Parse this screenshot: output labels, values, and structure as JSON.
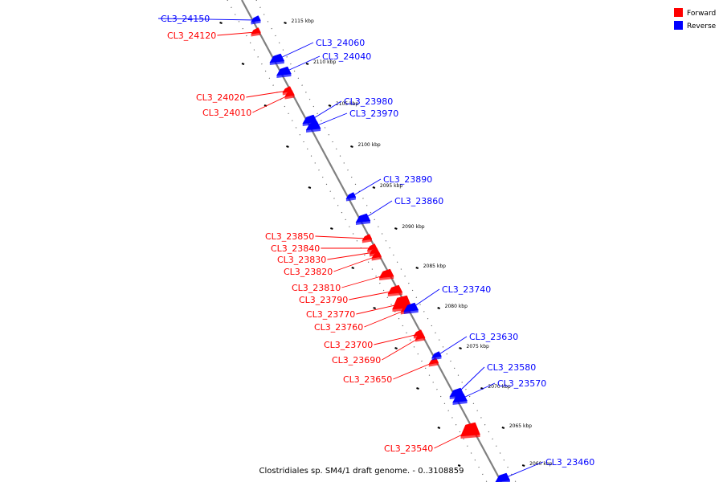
{
  "caption": "Clostridiales sp. SM4/1 draft genome. - 0..3108859",
  "legend": [
    {
      "label": "Forward",
      "color": "#ff0000"
    },
    {
      "label": "Reverse",
      "color": "#0000ff"
    }
  ],
  "colors": {
    "forward": "#ff0000",
    "reverse": "#0000ff",
    "backbone": "#808080"
  },
  "kbp_ticks": [
    "2115 kbp",
    "2110 kbp",
    "2105 kbp",
    "2100 kbp",
    "2095 kbp",
    "2090 kbp",
    "2085 kbp",
    "2080 kbp",
    "2075 kbp",
    "2070 kbp",
    "2065 kbp",
    "2060 kbp"
  ],
  "genes": [
    {
      "name": "CL3_24150",
      "strand": "reverse"
    },
    {
      "name": "CL3_24120",
      "strand": "forward"
    },
    {
      "name": "CL3_24060",
      "strand": "reverse"
    },
    {
      "name": "CL3_24040",
      "strand": "reverse"
    },
    {
      "name": "CL3_24020",
      "strand": "forward"
    },
    {
      "name": "CL3_24010",
      "strand": "forward"
    },
    {
      "name": "CL3_23980",
      "strand": "reverse"
    },
    {
      "name": "CL3_23970",
      "strand": "reverse"
    },
    {
      "name": "CL3_23890",
      "strand": "reverse"
    },
    {
      "name": "CL3_23860",
      "strand": "reverse"
    },
    {
      "name": "CL3_23850",
      "strand": "forward"
    },
    {
      "name": "CL3_23840",
      "strand": "forward"
    },
    {
      "name": "CL3_23830",
      "strand": "forward"
    },
    {
      "name": "CL3_23820",
      "strand": "forward"
    },
    {
      "name": "CL3_23810",
      "strand": "forward"
    },
    {
      "name": "CL3_23790",
      "strand": "forward"
    },
    {
      "name": "CL3_23770",
      "strand": "forward"
    },
    {
      "name": "CL3_23760",
      "strand": "forward"
    },
    {
      "name": "CL3_23740",
      "strand": "reverse"
    },
    {
      "name": "CL3_23700",
      "strand": "forward"
    },
    {
      "name": "CL3_23690",
      "strand": "forward"
    },
    {
      "name": "CL3_23650",
      "strand": "forward"
    },
    {
      "name": "CL3_23630",
      "strand": "reverse"
    },
    {
      "name": "CL3_23580",
      "strand": "reverse"
    },
    {
      "name": "CL3_23570",
      "strand": "reverse"
    },
    {
      "name": "CL3_23540",
      "strand": "forward"
    },
    {
      "name": "CL3_23460",
      "strand": "reverse"
    }
  ]
}
